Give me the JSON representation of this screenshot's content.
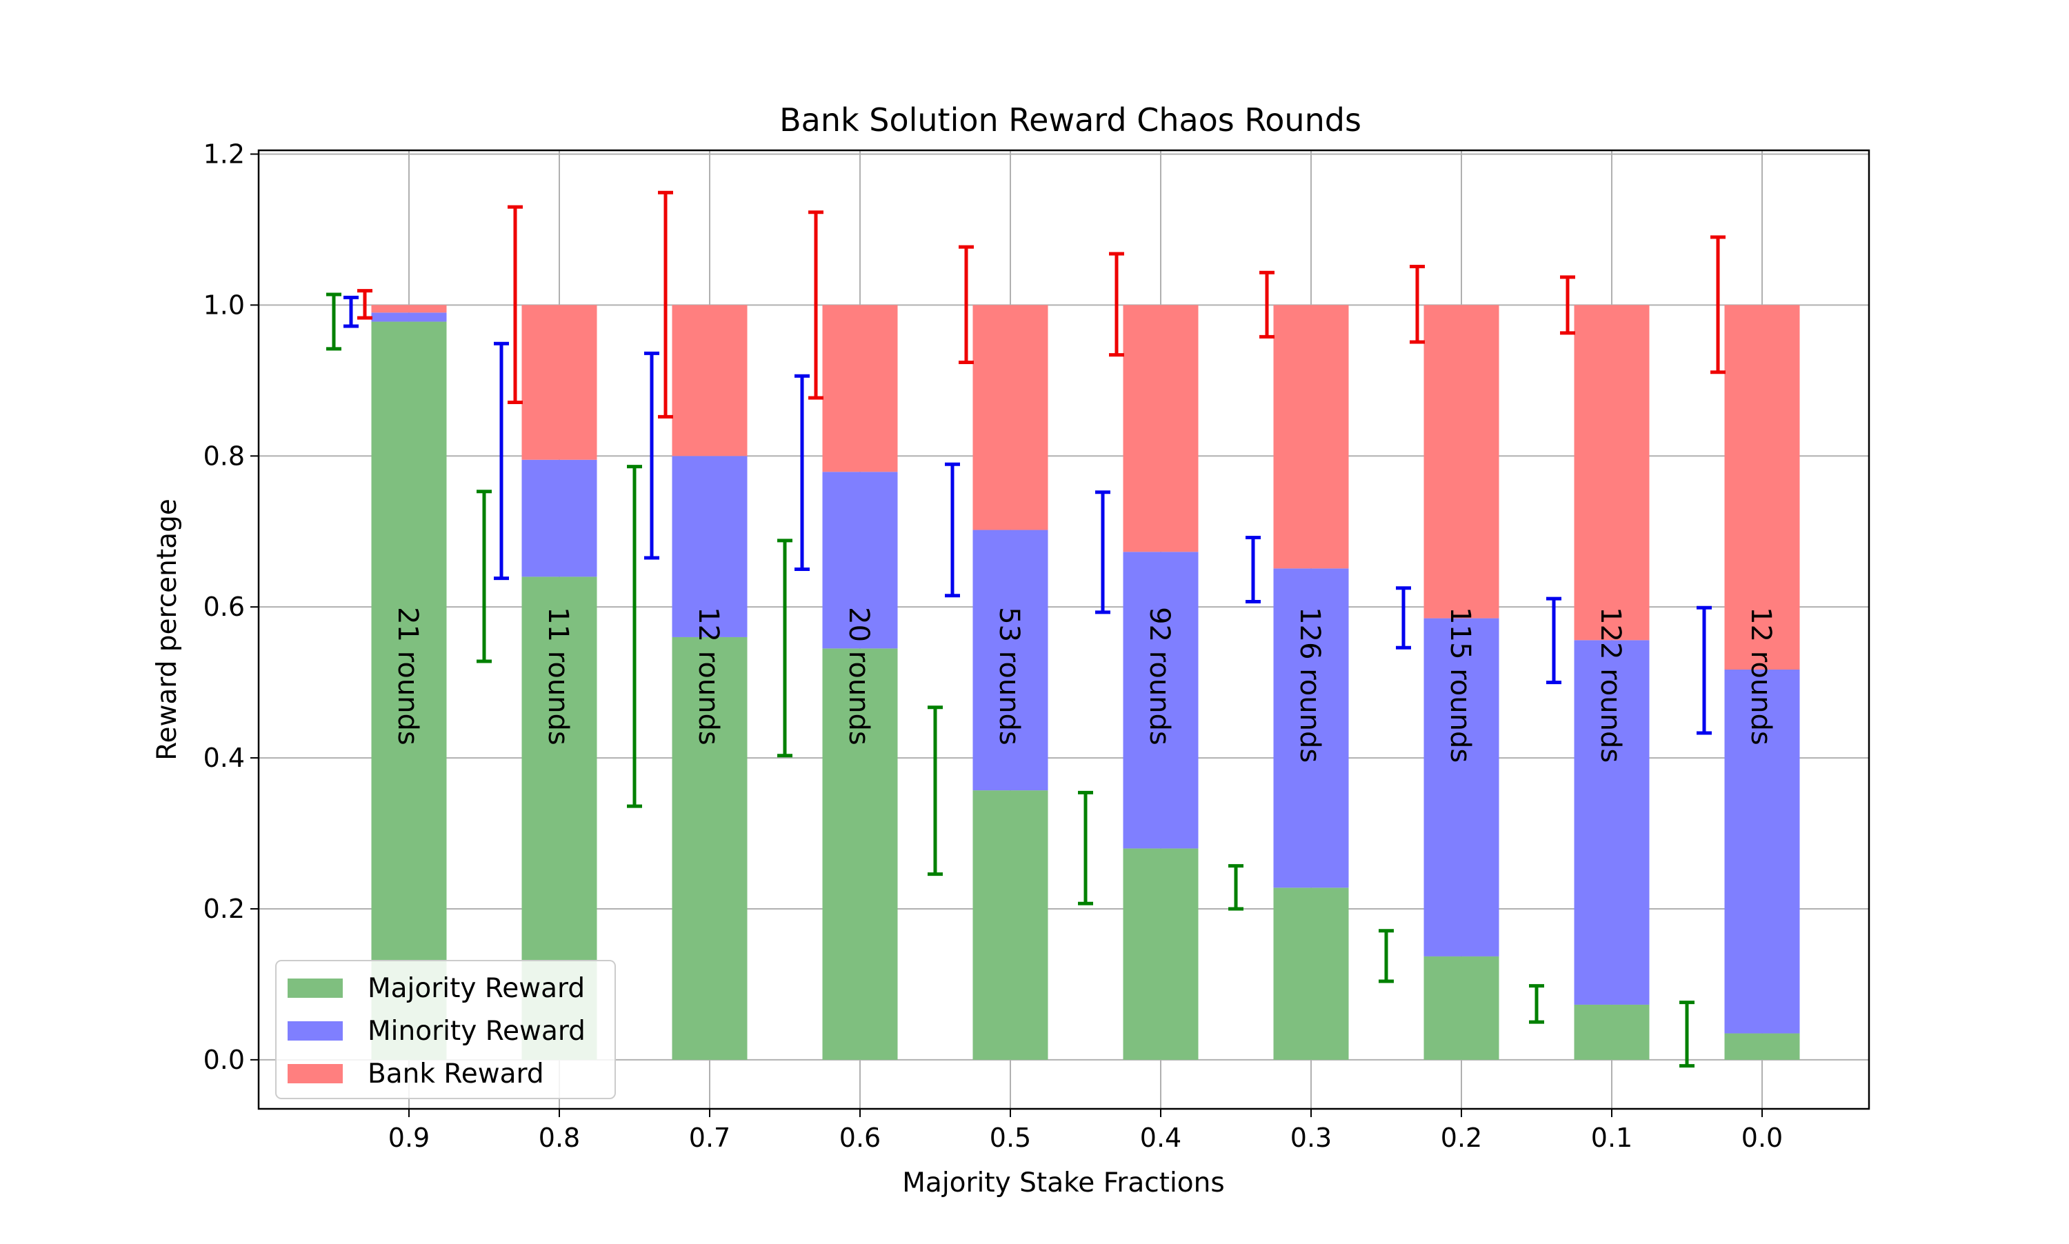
{
  "chart_data": {
    "type": "bar",
    "title": "Bank Solution Reward Chaos Rounds",
    "xlabel": "Majority Stake Fractions",
    "ylabel": "Reward percentage",
    "ylim": [
      -0.065,
      1.205
    ],
    "yticks": [
      "0.0",
      "0.2",
      "0.4",
      "0.6",
      "0.8",
      "1.0",
      "1.2"
    ],
    "grid": true,
    "legend_position": "lower-left",
    "categories": [
      "0.9",
      "0.8",
      "0.7",
      "0.6",
      "0.5",
      "0.4",
      "0.3",
      "0.2",
      "0.1",
      "0.0"
    ],
    "series": [
      {
        "name": "Majority Reward",
        "color": "#7fbf7f",
        "error_color": "#008000",
        "values": [
          0.978,
          0.64,
          0.56,
          0.545,
          0.357,
          0.28,
          0.228,
          0.137,
          0.073,
          0.035
        ],
        "err_low": [
          0.942,
          0.528,
          0.336,
          0.403,
          0.246,
          0.207,
          0.2,
          0.104,
          0.05,
          -0.008
        ],
        "err_high": [
          1.014,
          0.753,
          0.786,
          0.688,
          0.467,
          0.354,
          0.257,
          0.171,
          0.098,
          0.076
        ]
      },
      {
        "name": "Minority Reward",
        "color": "#7f7fff",
        "error_color": "#0000ee",
        "values": [
          0.012,
          0.155,
          0.24,
          0.234,
          0.345,
          0.393,
          0.423,
          0.448,
          0.483,
          0.482
        ],
        "err_low": [
          0.972,
          0.638,
          0.665,
          0.65,
          0.615,
          0.593,
          0.607,
          0.546,
          0.5,
          0.433
        ],
        "err_high": [
          1.01,
          0.949,
          0.936,
          0.906,
          0.789,
          0.752,
          0.692,
          0.625,
          0.611,
          0.599
        ]
      },
      {
        "name": "Bank Reward",
        "color": "#ff7f7f",
        "error_color": "#ee0000",
        "values": [
          0.01,
          0.205,
          0.2,
          0.221,
          0.298,
          0.327,
          0.349,
          0.415,
          0.444,
          0.483
        ],
        "err_low": [
          0.983,
          0.871,
          0.852,
          0.877,
          0.924,
          0.934,
          0.958,
          0.951,
          0.963,
          0.911
        ],
        "err_high": [
          1.019,
          1.13,
          1.149,
          1.123,
          1.077,
          1.068,
          1.043,
          1.051,
          1.037,
          1.09
        ]
      }
    ],
    "bar_annotations": [
      "21 rounds",
      "11 rounds",
      "12 rounds",
      "20 rounds",
      "53 rounds",
      "92 rounds",
      "126 rounds",
      "115 rounds",
      "122 rounds",
      "12 rounds"
    ]
  }
}
